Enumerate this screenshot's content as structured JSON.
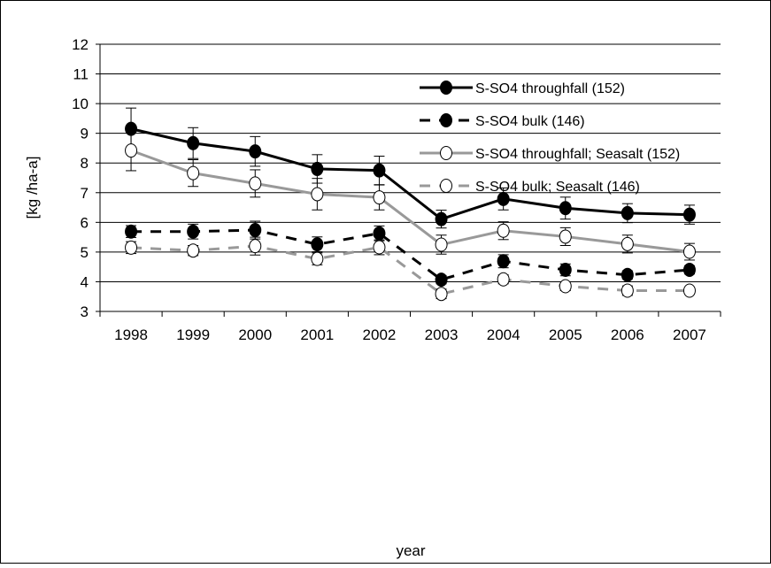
{
  "chart_data": {
    "type": "line",
    "title": "",
    "xlabel": "year",
    "ylabel": "[kg /ha-a]",
    "ylim": [
      3,
      12
    ],
    "y_ticks": [
      "3",
      "4",
      "5",
      "6",
      "7",
      "8",
      "9",
      "10",
      "11",
      "12"
    ],
    "categories": [
      "1998",
      "1999",
      "2000",
      "2001",
      "2002",
      "2003",
      "2004",
      "2005",
      "2006",
      "2007"
    ],
    "grid": true,
    "legend_position": "top-right",
    "series": [
      {
        "name": "S-SO4 throughfall (152)",
        "values": [
          9.15,
          8.67,
          8.39,
          7.8,
          7.75,
          6.11,
          6.79,
          6.48,
          6.31,
          6.26
        ],
        "error": [
          0.7,
          0.52,
          0.5,
          0.48,
          0.48,
          0.3,
          0.37,
          0.37,
          0.32,
          0.32
        ],
        "color": "#000000",
        "dash": "solid",
        "marker": "filled"
      },
      {
        "name": "S-SO4 bulk (146)",
        "values": [
          5.69,
          5.69,
          5.74,
          5.26,
          5.63,
          4.07,
          4.69,
          4.4,
          4.23,
          4.4
        ],
        "error": [
          0.2,
          0.25,
          0.3,
          0.25,
          0.25,
          0.14,
          0.22,
          0.2,
          0.14,
          0.14
        ],
        "color": "#000000",
        "dash": "dashed",
        "marker": "filled"
      },
      {
        "name": "S-SO4 throughfall; Seasalt (152)",
        "values": [
          8.42,
          7.66,
          7.31,
          6.95,
          6.84,
          5.25,
          5.72,
          5.52,
          5.27,
          5.01
        ],
        "error": [
          0.68,
          0.45,
          0.46,
          0.53,
          0.42,
          0.32,
          0.3,
          0.3,
          0.3,
          0.28
        ],
        "color": "#999999",
        "dash": "solid",
        "marker": "open"
      },
      {
        "name": "S-SO4 bulk; Seasalt (146)",
        "values": [
          5.15,
          5.05,
          5.2,
          4.77,
          5.16,
          3.59,
          4.08,
          3.85,
          3.7,
          3.7
        ],
        "error": [
          0.2,
          0.17,
          0.3,
          0.2,
          0.25,
          0.16,
          0.15,
          0.15,
          0.16,
          0.08
        ],
        "color": "#999999",
        "dash": "dashed",
        "marker": "open"
      }
    ]
  }
}
